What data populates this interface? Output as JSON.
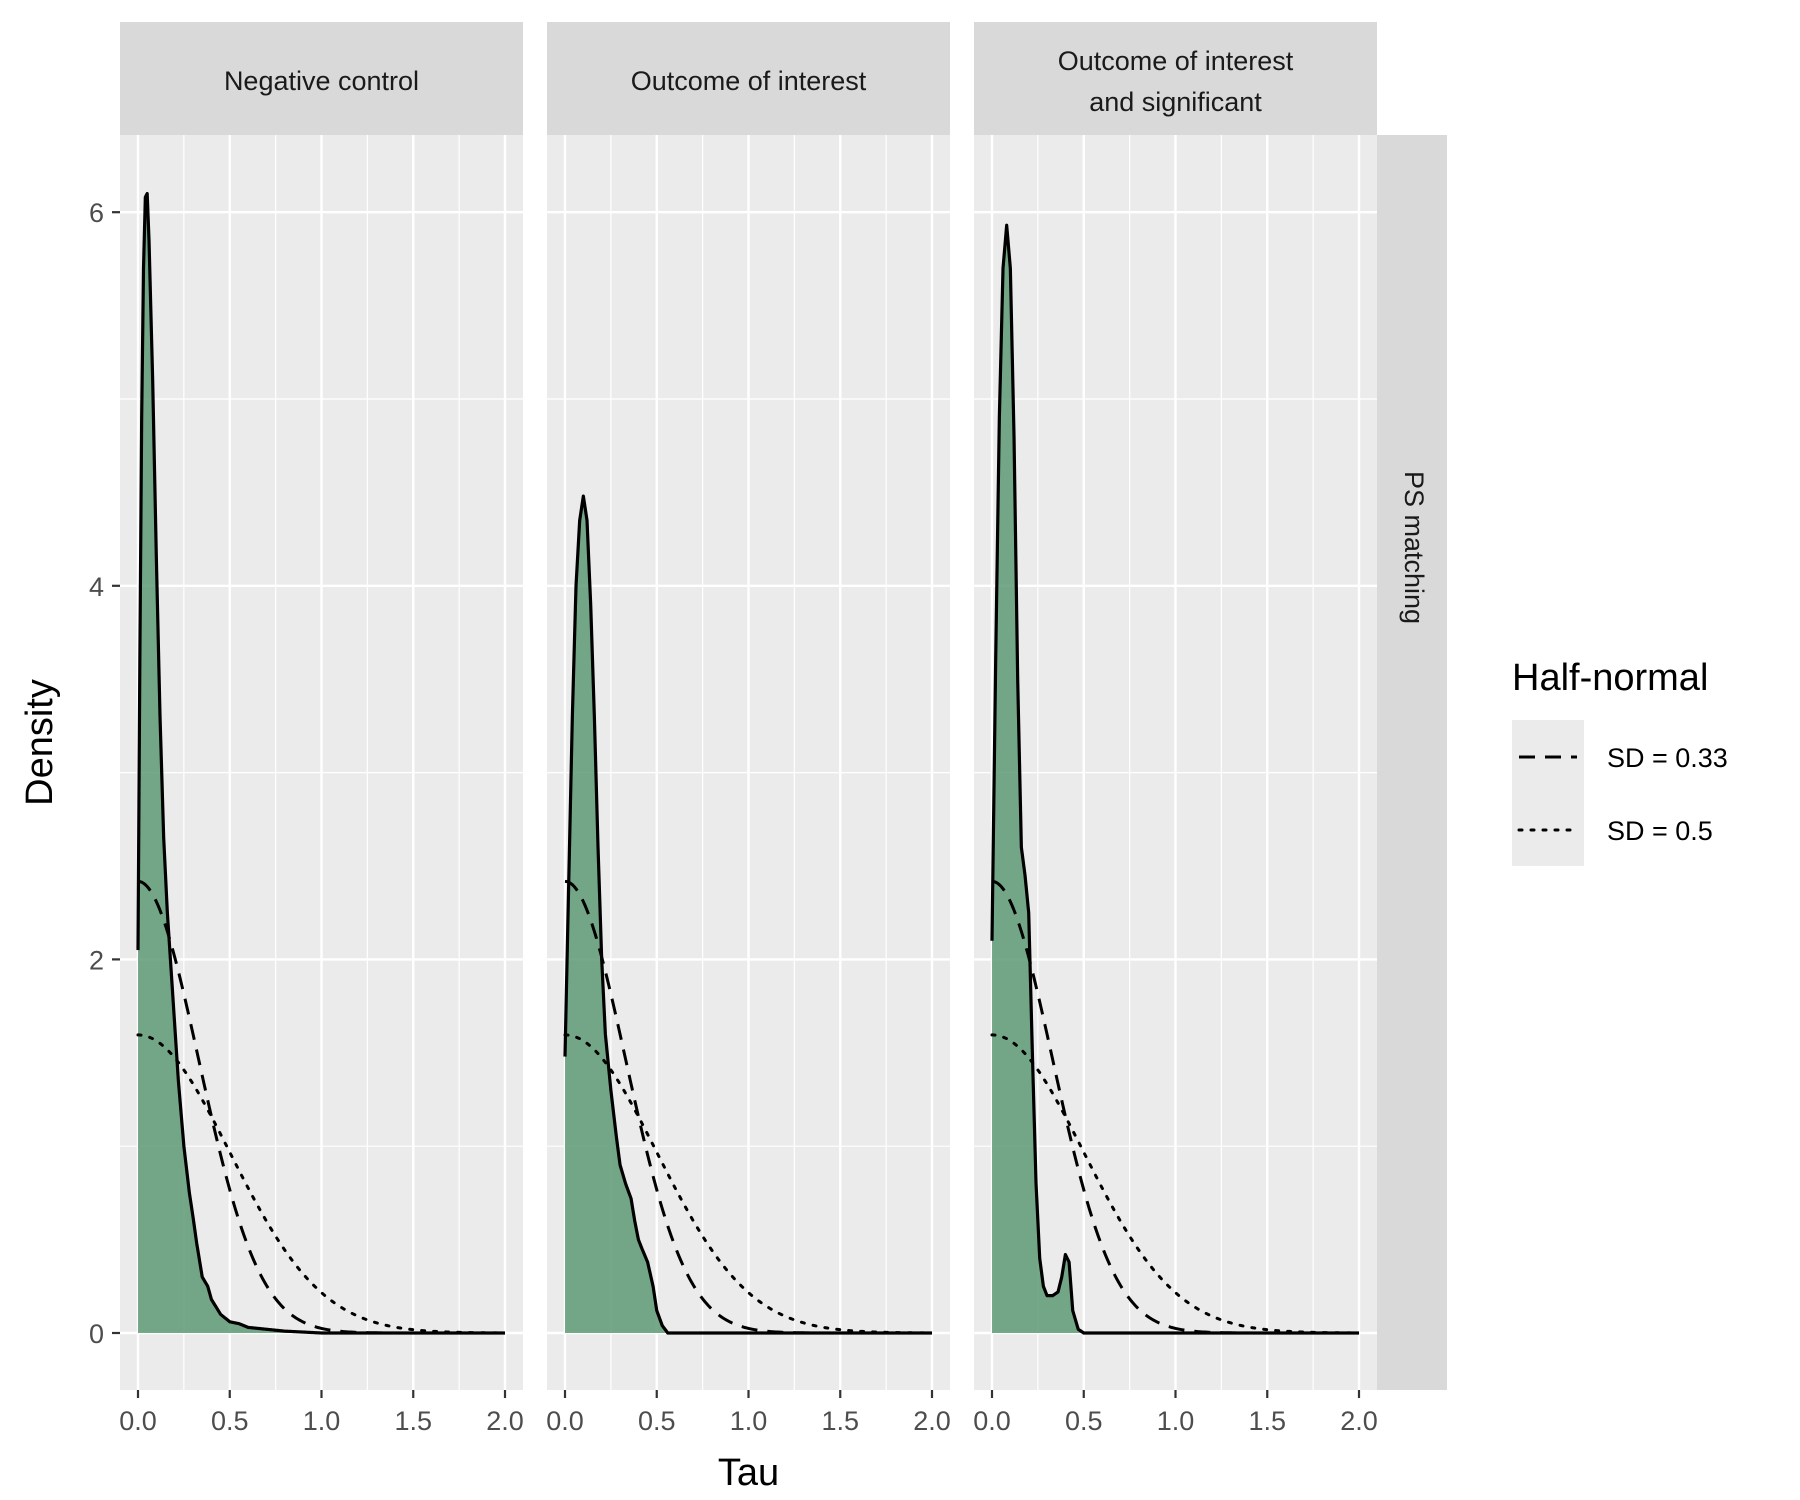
{
  "chart_data": {
    "type": "area",
    "xlabel": "Tau",
    "ylabel": "Density",
    "xlim": [
      0,
      2
    ],
    "ylim": [
      0,
      6.25
    ],
    "x_ticks": [
      "0.0",
      "0.5",
      "1.0",
      "1.5",
      "2.0"
    ],
    "y_ticks": [
      "0",
      "2",
      "4",
      "6"
    ],
    "row_strip": "PS matching",
    "grid": true,
    "fill_color": "#5e9a74",
    "legend": {
      "title": "Half-normal",
      "placement": "right",
      "entries": [
        {
          "label": "SD = 0.33",
          "sd": 0.33,
          "linetype": "dashed"
        },
        {
          "label": "SD = 0.5",
          "sd": 0.5,
          "linetype": "dotted"
        }
      ]
    },
    "panels": [
      {
        "title": "Negative control",
        "density": [
          [
            0.0,
            2.05
          ],
          [
            0.01,
            3.6
          ],
          [
            0.02,
            4.9
          ],
          [
            0.03,
            5.7
          ],
          [
            0.04,
            6.08
          ],
          [
            0.05,
            6.1
          ],
          [
            0.06,
            5.85
          ],
          [
            0.08,
            5.1
          ],
          [
            0.1,
            4.15
          ],
          [
            0.12,
            3.3
          ],
          [
            0.14,
            2.65
          ],
          [
            0.16,
            2.25
          ],
          [
            0.18,
            1.95
          ],
          [
            0.2,
            1.65
          ],
          [
            0.22,
            1.35
          ],
          [
            0.25,
            1.0
          ],
          [
            0.28,
            0.75
          ],
          [
            0.3,
            0.62
          ],
          [
            0.32,
            0.48
          ],
          [
            0.35,
            0.3
          ],
          [
            0.38,
            0.25
          ],
          [
            0.4,
            0.18
          ],
          [
            0.45,
            0.1
          ],
          [
            0.5,
            0.06
          ],
          [
            0.55,
            0.05
          ],
          [
            0.6,
            0.03
          ],
          [
            0.7,
            0.02
          ],
          [
            0.8,
            0.01
          ],
          [
            1.0,
            0.0
          ],
          [
            2.0,
            0.0
          ]
        ]
      },
      {
        "title": "Outcome of interest",
        "density": [
          [
            0.0,
            1.48
          ],
          [
            0.02,
            2.4
          ],
          [
            0.04,
            3.3
          ],
          [
            0.06,
            4.0
          ],
          [
            0.08,
            4.35
          ],
          [
            0.1,
            4.48
          ],
          [
            0.12,
            4.35
          ],
          [
            0.14,
            3.9
          ],
          [
            0.16,
            3.3
          ],
          [
            0.18,
            2.6
          ],
          [
            0.2,
            2.0
          ],
          [
            0.22,
            1.6
          ],
          [
            0.25,
            1.3
          ],
          [
            0.28,
            1.05
          ],
          [
            0.3,
            0.9
          ],
          [
            0.33,
            0.8
          ],
          [
            0.36,
            0.72
          ],
          [
            0.38,
            0.6
          ],
          [
            0.4,
            0.5
          ],
          [
            0.42,
            0.45
          ],
          [
            0.45,
            0.38
          ],
          [
            0.48,
            0.25
          ],
          [
            0.5,
            0.12
          ],
          [
            0.53,
            0.04
          ],
          [
            0.56,
            0.0
          ],
          [
            2.0,
            0.0
          ]
        ]
      },
      {
        "title": "Outcome of interest and significant",
        "density": [
          [
            0.0,
            2.1
          ],
          [
            0.02,
            3.6
          ],
          [
            0.04,
            4.9
          ],
          [
            0.06,
            5.7
          ],
          [
            0.08,
            5.93
          ],
          [
            0.1,
            5.7
          ],
          [
            0.12,
            4.8
          ],
          [
            0.14,
            3.5
          ],
          [
            0.16,
            2.6
          ],
          [
            0.18,
            2.45
          ],
          [
            0.2,
            2.25
          ],
          [
            0.22,
            1.5
          ],
          [
            0.24,
            0.8
          ],
          [
            0.26,
            0.4
          ],
          [
            0.28,
            0.25
          ],
          [
            0.3,
            0.2
          ],
          [
            0.33,
            0.2
          ],
          [
            0.36,
            0.22
          ],
          [
            0.38,
            0.3
          ],
          [
            0.4,
            0.42
          ],
          [
            0.42,
            0.38
          ],
          [
            0.44,
            0.12
          ],
          [
            0.47,
            0.02
          ],
          [
            0.5,
            0.0
          ],
          [
            2.0,
            0.0
          ]
        ]
      }
    ]
  }
}
